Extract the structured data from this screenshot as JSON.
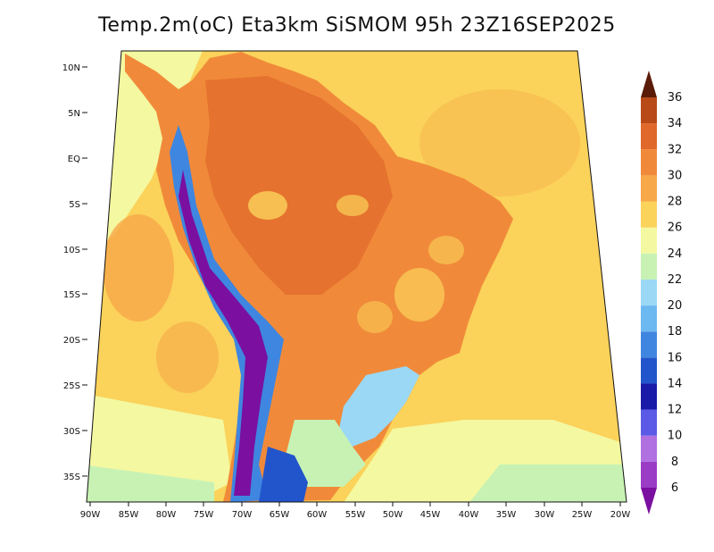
{
  "title": "Temp.2m(oC) Eta3km SiSMOM 95h 23Z16SEP2025",
  "map": {
    "lat_labels": [
      "10N",
      "5N",
      "EQ",
      "5S",
      "10S",
      "15S",
      "20S",
      "25S",
      "30S",
      "35S"
    ],
    "lon_labels": [
      "90W",
      "85W",
      "80W",
      "75W",
      "70W",
      "65W",
      "60W",
      "55W",
      "50W",
      "45W",
      "40W",
      "35W",
      "30W",
      "25W",
      "20W"
    ]
  },
  "colorbar": {
    "levels": [
      "6",
      "8",
      "10",
      "12",
      "14",
      "16",
      "18",
      "20",
      "22",
      "24",
      "26",
      "28",
      "30",
      "32",
      "34",
      "36"
    ],
    "colors": [
      "#7a0fa0",
      "#9a3cc6",
      "#b070e0",
      "#5a5ae6",
      "#1a1aa8",
      "#2255cc",
      "#3f86e0",
      "#6cb8f0",
      "#9ad8f5",
      "#c8f2b4",
      "#f4f8a0",
      "#fbd25a",
      "#f7a848",
      "#f08a3a",
      "#e0682a",
      "#b84a18",
      "#8a3010",
      "#5a1c08"
    ]
  }
}
